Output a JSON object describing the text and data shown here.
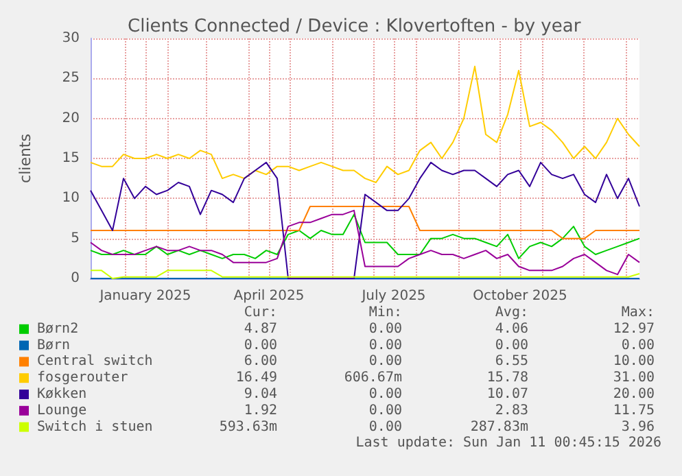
{
  "chart_data": {
    "type": "line",
    "title": "Clients Connected / Device : Klovertoften - by year",
    "ylabel": "clients",
    "x": [
      "2024-12-07",
      "2024-12-15",
      "2024-12-23",
      "2024-12-31",
      "2025-01-08",
      "2025-01-16",
      "2025-01-24",
      "2025-02-01",
      "2025-02-09",
      "2025-02-17",
      "2025-02-25",
      "2025-03-05",
      "2025-03-13",
      "2025-03-21",
      "2025-03-29",
      "2025-04-06",
      "2025-04-14",
      "2025-04-22",
      "2025-04-30",
      "2025-05-08",
      "2025-05-16",
      "2025-05-24",
      "2025-06-01",
      "2025-06-09",
      "2025-06-17",
      "2025-06-25",
      "2025-07-03",
      "2025-07-11",
      "2025-07-19",
      "2025-07-27",
      "2025-08-04",
      "2025-08-12",
      "2025-08-20",
      "2025-08-28",
      "2025-09-05",
      "2025-09-13",
      "2025-09-21",
      "2025-09-29",
      "2025-10-07",
      "2025-10-15",
      "2025-10-23",
      "2025-10-31",
      "2025-11-08",
      "2025-11-16",
      "2025-11-24",
      "2025-12-02",
      "2025-12-10",
      "2025-12-18",
      "2025-12-26",
      "2026-01-03",
      "2026-01-11"
    ],
    "xlim": [
      "2024-12-07",
      "2026-01-11"
    ],
    "xticks": [
      {
        "value": "2025-01-01",
        "label": null
      },
      {
        "value": "2025-01-16",
        "label": "January 2025"
      },
      {
        "value": "2025-02-01",
        "label": null
      },
      {
        "value": "2025-03-01",
        "label": null
      },
      {
        "value": "2025-04-01",
        "label": null
      },
      {
        "value": "2025-04-16",
        "label": "April 2025"
      },
      {
        "value": "2025-05-01",
        "label": null
      },
      {
        "value": "2025-06-01",
        "label": null
      },
      {
        "value": "2025-07-01",
        "label": null
      },
      {
        "value": "2025-07-16",
        "label": "July 2025"
      },
      {
        "value": "2025-08-01",
        "label": null
      },
      {
        "value": "2025-09-01",
        "label": null
      },
      {
        "value": "2025-10-01",
        "label": null
      },
      {
        "value": "2025-10-16",
        "label": "October 2025"
      },
      {
        "value": "2025-11-01",
        "label": null
      },
      {
        "value": "2025-12-01",
        "label": null
      },
      {
        "value": "2026-01-01",
        "label": null
      }
    ],
    "ylim": [
      0,
      30
    ],
    "yticks": [
      0,
      5,
      10,
      15,
      20,
      25,
      30
    ],
    "grid": true,
    "legend": "bottom",
    "series": [
      {
        "name": "Børn2",
        "color": "#00cc00",
        "values": [
          3.5,
          3,
          3,
          3.5,
          3,
          3,
          4,
          3,
          3.5,
          3,
          3.5,
          3,
          2.5,
          3,
          3,
          2.5,
          3.5,
          3,
          5.5,
          6,
          5,
          6,
          5.5,
          5.5,
          8,
          4.5,
          4.5,
          4.5,
          3,
          3,
          3,
          5,
          5,
          5.5,
          5,
          5,
          4.5,
          4,
          5.5,
          2.5,
          4,
          4.5,
          4,
          5,
          6.5,
          4,
          3,
          3.5,
          4,
          4.5,
          5
        ]
      },
      {
        "name": "Børn",
        "color": "#0066b3",
        "values": [
          0,
          0,
          0,
          0,
          0,
          0,
          0,
          0,
          0,
          0,
          0,
          0,
          0,
          0,
          0,
          0,
          0,
          0,
          0,
          0,
          0,
          0,
          0,
          0,
          0,
          0,
          0,
          0,
          0,
          0,
          0,
          0,
          0,
          0,
          0,
          0,
          0,
          0,
          0,
          0,
          0,
          0,
          0,
          0,
          0,
          0,
          0,
          0,
          0,
          0,
          0
        ]
      },
      {
        "name": "Central switch",
        "color": "#ff8000",
        "values": [
          6,
          6,
          6,
          6,
          6,
          6,
          6,
          6,
          6,
          6,
          6,
          6,
          6,
          6,
          6,
          6,
          6,
          6,
          6,
          6,
          9,
          9,
          9,
          9,
          9,
          9,
          9,
          9,
          9,
          9,
          6,
          6,
          6,
          6,
          6,
          6,
          6,
          6,
          6,
          6,
          6,
          6,
          6,
          5,
          5,
          5,
          6,
          6,
          6,
          6,
          6
        ]
      },
      {
        "name": "fosgerouter",
        "color": "#ffcc00",
        "values": [
          14.5,
          14,
          14,
          15.5,
          15,
          15,
          15.5,
          15,
          15.5,
          15,
          16,
          15.5,
          12.5,
          13,
          12.5,
          13.5,
          13,
          14,
          14,
          13.5,
          14,
          14.5,
          14,
          13.5,
          13.5,
          12.5,
          12,
          14,
          13,
          13.5,
          16,
          17,
          15,
          17,
          20,
          26.5,
          18,
          17,
          20.5,
          26,
          19,
          19.5,
          18.5,
          17,
          15,
          16.5,
          15,
          17,
          20,
          18,
          16.5
        ]
      },
      {
        "name": "Køkken",
        "color": "#330099",
        "values": [
          11,
          8.5,
          6,
          12.5,
          10,
          11.5,
          10.5,
          11,
          12,
          11.5,
          8,
          11,
          10.5,
          9.5,
          12.5,
          13.5,
          14.5,
          12.5,
          0,
          0,
          0,
          0,
          0,
          0,
          0,
          10.5,
          9.5,
          8.5,
          8.5,
          10,
          12.5,
          14.5,
          13.5,
          13,
          13.5,
          13.5,
          12.5,
          11.5,
          13,
          13.5,
          11.5,
          14.5,
          13,
          12.5,
          13,
          10.5,
          9.5,
          13,
          10,
          12.5,
          9
        ]
      },
      {
        "name": "Lounge",
        "color": "#990099",
        "values": [
          4.5,
          3.5,
          3,
          3,
          3,
          3.5,
          4,
          3.5,
          3.5,
          4,
          3.5,
          3.5,
          3,
          2,
          2,
          2,
          2,
          2.5,
          6.5,
          7,
          7,
          7.5,
          8,
          8,
          8.5,
          1.5,
          1.5,
          1.5,
          1.5,
          2.5,
          3,
          3.5,
          3,
          3,
          2.5,
          3,
          3.5,
          2.5,
          3,
          1.5,
          1,
          1,
          1,
          1.5,
          2.5,
          3,
          2,
          1,
          0.5,
          3,
          2
        ]
      },
      {
        "name": "Switch i stuen",
        "color": "#ccff00",
        "values": [
          1,
          1,
          0,
          0.2,
          0.2,
          0.2,
          0.2,
          1,
          1,
          1,
          1,
          1,
          0.2,
          0.2,
          0.2,
          0.2,
          0.2,
          0.2,
          0.2,
          0.2,
          0.2,
          0.2,
          0.2,
          0.2,
          0.2,
          0.2,
          0.2,
          0.2,
          0.2,
          0.2,
          0.2,
          0.2,
          0.2,
          0.2,
          0.2,
          0.2,
          0.2,
          0.2,
          0.2,
          0.2,
          0.2,
          0.2,
          0.2,
          0.2,
          0.2,
          0.2,
          0.2,
          0.2,
          0.2,
          0.2,
          0.6
        ]
      }
    ],
    "annotations": [
      "Cur:",
      "Min:",
      "Avg:",
      "Max:",
      "4.87",
      "0.00",
      "4.06",
      "12.97",
      "0.00",
      "0.00",
      "0.00",
      "0.00",
      "6.00",
      "0.00",
      "6.55",
      "10.00",
      "16.49",
      "606.67m",
      "15.78",
      "31.00",
      "9.04",
      "0.00",
      "10.07",
      "20.00",
      "1.92",
      "0.00",
      "2.83",
      "11.75",
      "593.63m",
      "0.00",
      "287.83m",
      "3.96",
      "Last update: Sun Jan 11 00:45:15 2026"
    ]
  }
}
